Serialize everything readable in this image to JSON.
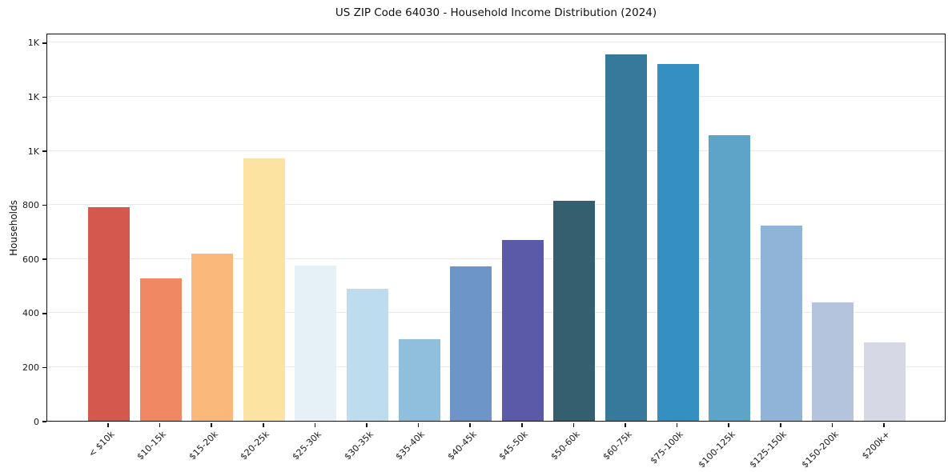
{
  "title": "US ZIP Code 64030 - Household Income Distribution (2024)",
  "chart_data": {
    "type": "bar",
    "title": "US ZIP Code 64030 - Household Income Distribution (2024)",
    "xlabel": "",
    "ylabel": "Households",
    "categories": [
      "< $10k",
      "$10-15k",
      "$15-20k",
      "$20-25k",
      "$25-30k",
      "$30-35k",
      "$35-40k",
      "$40-45k",
      "$45-50k",
      "$50-60k",
      "$60-75k",
      "$75-100k",
      "$100-125k",
      "$125-150k",
      "$150-200k",
      "$200k+"
    ],
    "values": [
      789,
      526,
      617,
      970,
      574,
      489,
      303,
      572,
      669,
      814,
      1355,
      1320,
      1057,
      722,
      439,
      290
    ],
    "bar_colors": [
      "#d5584f",
      "#f18864",
      "#fbb87b",
      "#fde3a2",
      "#e6f1f6",
      "#bddced",
      "#90bfdd",
      "#6e95c8",
      "#5b5aa8",
      "#335f6f",
      "#37799b",
      "#3590c2",
      "#5ea4c9",
      "#8fb4d8",
      "#b4c4dd",
      "#d6d8e6"
    ],
    "ylim": [
      0,
      1435
    ],
    "yticks": [
      0,
      200,
      400,
      600,
      800,
      1000,
      1200,
      1400
    ],
    "ytick_labels": [
      "0",
      "200",
      "400",
      "600",
      "800",
      "1K",
      "1K",
      "1K"
    ],
    "grid": "horizontal",
    "gridline_color": "#e9e9e9",
    "frame_color": "#111111",
    "background_color": "#ffffff",
    "legend": "none"
  }
}
